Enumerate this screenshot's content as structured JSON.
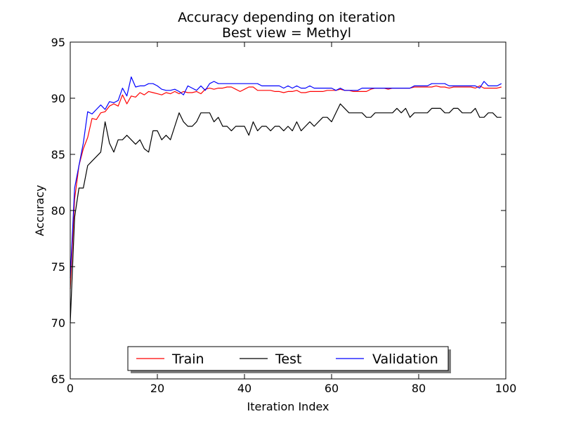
{
  "chart_data": {
    "type": "line",
    "title": "Accuracy depending on iteration",
    "subtitle": "Best view = Methyl",
    "xlabel": "Iteration Index",
    "ylabel": "Accuracy",
    "xlim": [
      0,
      100
    ],
    "ylim": [
      65,
      95
    ],
    "xticks": [
      "0",
      "20",
      "40",
      "60",
      "80",
      "100"
    ],
    "yticks": [
      "65",
      "70",
      "75",
      "80",
      "85",
      "90",
      "95"
    ],
    "grid": false,
    "legend_position": "bottom-center",
    "x": [
      0,
      1,
      2,
      3,
      4,
      5,
      6,
      7,
      8,
      9,
      10,
      11,
      12,
      13,
      14,
      15,
      16,
      17,
      18,
      19,
      20,
      21,
      22,
      23,
      24,
      25,
      26,
      27,
      28,
      29,
      30,
      31,
      32,
      33,
      34,
      35,
      36,
      37,
      38,
      39,
      40,
      41,
      42,
      43,
      44,
      45,
      46,
      47,
      48,
      49,
      50,
      51,
      52,
      53,
      54,
      55,
      56,
      57,
      58,
      59,
      60,
      61,
      62,
      63,
      64,
      65,
      66,
      67,
      68,
      69,
      70,
      71,
      72,
      73,
      74,
      75,
      76,
      77,
      78,
      79,
      80,
      81,
      82,
      83,
      84,
      85,
      86,
      87,
      88,
      89,
      90,
      91,
      92,
      93,
      94,
      95,
      96,
      97,
      98,
      99
    ],
    "series": [
      {
        "name": "Train",
        "color": "#ff0000",
        "values": [
          73.0,
          81.0,
          84.0,
          85.5,
          86.5,
          88.2,
          88.1,
          88.7,
          88.8,
          89.3,
          89.5,
          89.3,
          90.3,
          89.5,
          90.2,
          90.1,
          90.5,
          90.3,
          90.6,
          90.5,
          90.4,
          90.3,
          90.5,
          90.4,
          90.6,
          90.4,
          90.6,
          90.5,
          90.5,
          90.6,
          90.4,
          90.8,
          90.9,
          90.8,
          90.9,
          90.9,
          91.0,
          91.0,
          90.8,
          90.6,
          90.8,
          91.0,
          91.0,
          90.7,
          90.7,
          90.7,
          90.7,
          90.6,
          90.6,
          90.5,
          90.6,
          90.6,
          90.7,
          90.5,
          90.5,
          90.6,
          90.6,
          90.6,
          90.6,
          90.7,
          90.7,
          90.7,
          90.8,
          90.7,
          90.7,
          90.6,
          90.6,
          90.6,
          90.6,
          90.8,
          90.9,
          90.9,
          90.9,
          90.8,
          90.9,
          90.9,
          90.9,
          90.9,
          90.9,
          91.0,
          91.0,
          91.0,
          91.0,
          91.0,
          91.1,
          91.0,
          91.0,
          90.9,
          91.0,
          91.0,
          91.0,
          91.0,
          91.0,
          90.9,
          91.1,
          90.9,
          90.9,
          90.9,
          90.9,
          91.0
        ]
      },
      {
        "name": "Test",
        "color": "#000000",
        "values": [
          70.0,
          79.4,
          82.0,
          82.0,
          84.0,
          84.4,
          84.8,
          85.2,
          87.9,
          86.0,
          85.2,
          86.3,
          86.3,
          86.7,
          86.3,
          85.9,
          86.3,
          85.5,
          85.2,
          87.1,
          87.1,
          86.3,
          86.7,
          86.3,
          87.5,
          88.7,
          87.9,
          87.5,
          87.5,
          87.9,
          88.7,
          88.7,
          88.7,
          87.9,
          88.3,
          87.5,
          87.5,
          87.1,
          87.5,
          87.5,
          87.5,
          86.7,
          87.9,
          87.1,
          87.5,
          87.5,
          87.1,
          87.5,
          87.5,
          87.1,
          87.5,
          87.1,
          87.9,
          87.1,
          87.5,
          87.9,
          87.5,
          87.9,
          88.3,
          88.3,
          87.9,
          88.7,
          89.5,
          89.1,
          88.7,
          88.7,
          88.7,
          88.7,
          88.3,
          88.3,
          88.7,
          88.7,
          88.7,
          88.7,
          88.7,
          89.1,
          88.7,
          89.1,
          88.3,
          88.7,
          88.7,
          88.7,
          88.7,
          89.1,
          89.1,
          89.1,
          88.7,
          88.7,
          89.1,
          89.1,
          88.7,
          88.7,
          88.7,
          89.1,
          88.3,
          88.3,
          88.7,
          88.7,
          88.3,
          88.3
        ]
      },
      {
        "name": "Validation",
        "color": "#0000ff",
        "values": [
          74.0,
          82.0,
          84.0,
          86.0,
          88.8,
          88.6,
          89.0,
          89.4,
          89.0,
          89.7,
          89.6,
          89.8,
          90.9,
          90.2,
          91.9,
          91.0,
          91.1,
          91.1,
          91.3,
          91.3,
          91.1,
          90.8,
          90.7,
          90.7,
          90.8,
          90.6,
          90.3,
          91.1,
          90.9,
          90.7,
          91.1,
          90.7,
          91.3,
          91.5,
          91.3,
          91.3,
          91.3,
          91.3,
          91.3,
          91.3,
          91.3,
          91.3,
          91.3,
          91.3,
          91.1,
          91.1,
          91.1,
          91.1,
          91.1,
          90.9,
          91.1,
          90.9,
          91.1,
          90.9,
          90.9,
          91.1,
          90.9,
          90.9,
          90.9,
          90.9,
          90.9,
          90.7,
          90.9,
          90.7,
          90.7,
          90.7,
          90.7,
          90.9,
          90.9,
          90.9,
          90.9,
          90.9,
          90.9,
          90.9,
          90.9,
          90.9,
          90.9,
          90.9,
          90.9,
          91.1,
          91.1,
          91.1,
          91.1,
          91.3,
          91.3,
          91.3,
          91.3,
          91.1,
          91.1,
          91.1,
          91.1,
          91.1,
          91.1,
          91.1,
          90.9,
          91.5,
          91.1,
          91.1,
          91.1,
          91.3
        ]
      }
    ]
  }
}
